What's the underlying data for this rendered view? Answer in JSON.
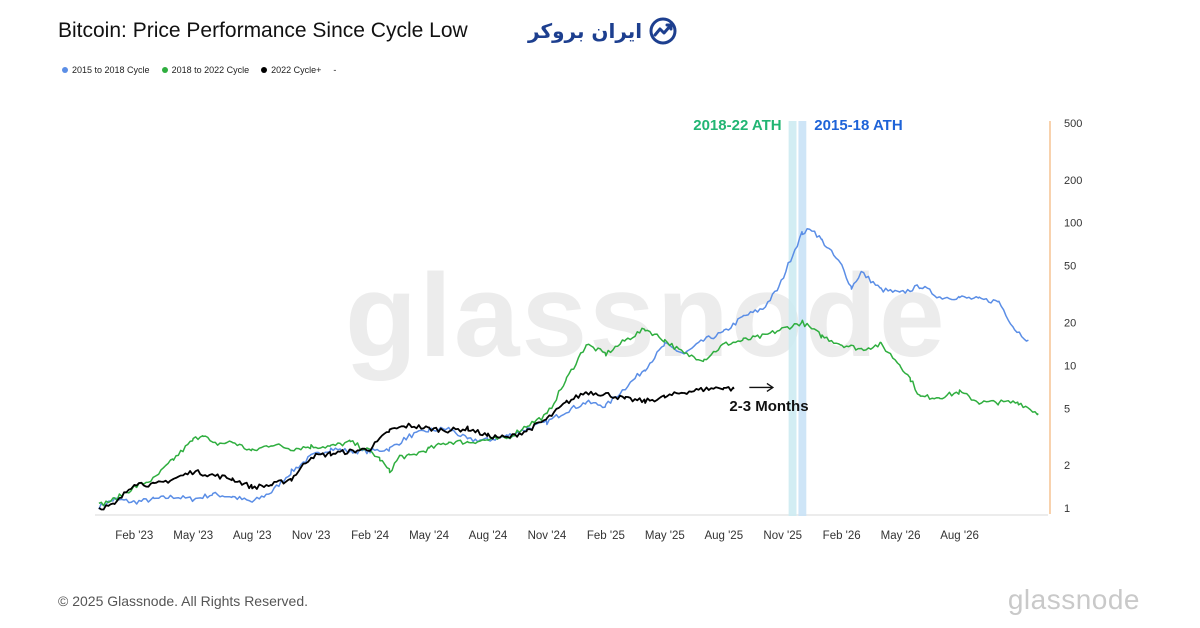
{
  "header": {
    "title": "Bitcoin: Price Performance Since Cycle Low",
    "brand_text": "ایران بروکر"
  },
  "legend": [
    {
      "label": "2015 to 2018 Cycle",
      "color": "#5b8ee6"
    },
    {
      "label": "2018 to 2022 Cycle",
      "color": "#2fae3f"
    },
    {
      "label": "2022 Cycle+",
      "color": "#000000"
    },
    {
      "label": "-",
      "color": ""
    }
  ],
  "watermark": "glassnode",
  "footer": {
    "copyright": "© 2025 Glassnode. All Rights Reserved.",
    "brand": "glassnode"
  },
  "chart_data": {
    "type": "line",
    "title": "Bitcoin: Price Performance Since Cycle Low",
    "y_scale": "log",
    "ylim": [
      1,
      500
    ],
    "y_ticks": [
      1,
      2,
      5,
      10,
      20,
      50,
      100,
      200,
      500
    ],
    "y_tick_labels": [
      "1",
      "2",
      "5",
      "10",
      "20",
      "50",
      "100",
      "200",
      "500"
    ],
    "x_unit": "months since Dec 2022",
    "xlim": [
      0,
      48.5
    ],
    "x_ticks": [
      {
        "m": 2,
        "label": "Feb '23"
      },
      {
        "m": 5,
        "label": "May '23"
      },
      {
        "m": 8,
        "label": "Aug '23"
      },
      {
        "m": 11,
        "label": "Nov '23"
      },
      {
        "m": 14,
        "label": "Feb '24"
      },
      {
        "m": 17,
        "label": "May '24"
      },
      {
        "m": 20,
        "label": "Aug '24"
      },
      {
        "m": 23,
        "label": "Nov '24"
      },
      {
        "m": 26,
        "label": "Feb '25"
      },
      {
        "m": 29,
        "label": "May '25"
      },
      {
        "m": 32,
        "label": "Aug '25"
      },
      {
        "m": 35,
        "label": "Nov '25"
      },
      {
        "m": 38,
        "label": "Feb '26"
      },
      {
        "m": 41,
        "label": "May '26"
      },
      {
        "m": 44,
        "label": "Aug '26"
      }
    ],
    "series": [
      {
        "name": "2015 to 2018 Cycle",
        "color": "#5b8ee6",
        "points": [
          [
            0.2,
            1.02
          ],
          [
            1,
            1.15
          ],
          [
            2,
            1.1
          ],
          [
            3,
            1.15
          ],
          [
            4,
            1.2
          ],
          [
            5,
            1.15
          ],
          [
            6,
            1.25
          ],
          [
            7,
            1.2
          ],
          [
            8,
            1.1
          ],
          [
            9,
            1.3
          ],
          [
            10,
            1.8
          ],
          [
            11,
            2.3
          ],
          [
            12,
            2.6
          ],
          [
            13,
            2.5
          ],
          [
            14,
            2.5
          ],
          [
            15,
            2.6
          ],
          [
            16,
            3.2
          ],
          [
            17,
            3.5
          ],
          [
            18,
            3.6
          ],
          [
            19,
            3.0
          ],
          [
            20,
            3.0
          ],
          [
            21,
            3.2
          ],
          [
            22,
            3.6
          ],
          [
            23,
            4.0
          ],
          [
            24,
            4.8
          ],
          [
            25,
            5.5
          ],
          [
            26,
            5.2
          ],
          [
            27,
            7.0
          ],
          [
            28,
            9.5
          ],
          [
            29,
            14
          ],
          [
            30,
            12
          ],
          [
            31,
            15
          ],
          [
            32,
            17
          ],
          [
            33,
            22
          ],
          [
            34,
            25
          ],
          [
            34.8,
            35
          ],
          [
            35.5,
            60
          ],
          [
            36,
            85
          ],
          [
            36.5,
            90
          ],
          [
            37,
            75
          ],
          [
            38,
            50
          ],
          [
            38.5,
            35
          ],
          [
            39,
            45
          ],
          [
            40,
            34
          ],
          [
            41,
            32
          ],
          [
            42,
            36
          ],
          [
            43,
            30
          ],
          [
            44,
            30
          ],
          [
            45,
            29
          ],
          [
            46,
            28
          ],
          [
            46.8,
            18
          ],
          [
            47.5,
            15
          ]
        ]
      },
      {
        "name": "2018 to 2022 Cycle",
        "color": "#2fae3f",
        "points": [
          [
            0.2,
            1.05
          ],
          [
            1,
            1.15
          ],
          [
            2,
            1.4
          ],
          [
            3,
            1.6
          ],
          [
            4,
            2.2
          ],
          [
            5,
            3.0
          ],
          [
            5.5,
            3.3
          ],
          [
            6,
            2.8
          ],
          [
            7,
            2.9
          ],
          [
            8,
            2.5
          ],
          [
            9,
            2.8
          ],
          [
            10,
            2.6
          ],
          [
            11,
            2.7
          ],
          [
            12,
            2.7
          ],
          [
            13,
            2.9
          ],
          [
            14,
            2.5
          ],
          [
            14.5,
            2.2
          ],
          [
            15,
            1.8
          ],
          [
            15.5,
            2.3
          ],
          [
            16,
            2.3
          ],
          [
            17,
            2.6
          ],
          [
            18,
            2.9
          ],
          [
            19,
            2.9
          ],
          [
            20,
            3.0
          ],
          [
            21,
            3.1
          ],
          [
            22,
            3.8
          ],
          [
            23,
            4.5
          ],
          [
            24,
            8.0
          ],
          [
            25,
            14
          ],
          [
            26,
            12
          ],
          [
            27,
            15
          ],
          [
            28,
            18
          ],
          [
            29,
            15
          ],
          [
            30,
            12
          ],
          [
            31,
            11
          ],
          [
            32,
            14
          ],
          [
            33,
            15
          ],
          [
            34,
            16
          ],
          [
            35,
            18
          ],
          [
            36,
            20
          ],
          [
            37,
            16
          ],
          [
            38,
            14
          ],
          [
            39,
            13
          ],
          [
            40,
            14
          ],
          [
            41,
            10
          ],
          [
            41.5,
            8
          ],
          [
            42,
            6
          ],
          [
            43,
            6
          ],
          [
            44,
            6.5
          ],
          [
            45,
            5.5
          ],
          [
            46,
            5.5
          ],
          [
            47,
            5.5
          ],
          [
            48,
            4.6
          ]
        ]
      },
      {
        "name": "2022 Cycle+",
        "color": "#000000",
        "points": [
          [
            0.2,
            1.0
          ],
          [
            1,
            1.05
          ],
          [
            2,
            1.5
          ],
          [
            3,
            1.45
          ],
          [
            4,
            1.6
          ],
          [
            5,
            1.8
          ],
          [
            6,
            1.7
          ],
          [
            7,
            1.6
          ],
          [
            8,
            1.4
          ],
          [
            9,
            1.45
          ],
          [
            10,
            1.6
          ],
          [
            11,
            2.3
          ],
          [
            12,
            2.4
          ],
          [
            13,
            2.5
          ],
          [
            14,
            2.6
          ],
          [
            15,
            3.5
          ],
          [
            16,
            3.8
          ],
          [
            17,
            3.6
          ],
          [
            18,
            3.5
          ],
          [
            19,
            3.6
          ],
          [
            20,
            3.2
          ],
          [
            21,
            3.1
          ],
          [
            22,
            3.5
          ],
          [
            23,
            4.2
          ],
          [
            24,
            5.5
          ],
          [
            25,
            6.5
          ],
          [
            26,
            6.3
          ],
          [
            27,
            5.8
          ],
          [
            28,
            5.6
          ],
          [
            29,
            6.0
          ],
          [
            30,
            6.5
          ],
          [
            31,
            6.8
          ],
          [
            32,
            7.0
          ],
          [
            32.5,
            6.8
          ]
        ]
      }
    ],
    "bands": [
      {
        "label": "2018-22 ATH",
        "color": "#2fae3f",
        "x0": 35.3,
        "x1": 35.7
      },
      {
        "label": "2015-18 ATH",
        "color": "#1e63d8",
        "x0": 35.8,
        "x1": 36.2
      }
    ],
    "annotations": [
      {
        "text": "2-3 Months",
        "x": 34.3,
        "y": 5.2
      },
      {
        "arrow": true,
        "x0": 33.3,
        "x1": 34.5,
        "y": 7.0
      }
    ]
  }
}
